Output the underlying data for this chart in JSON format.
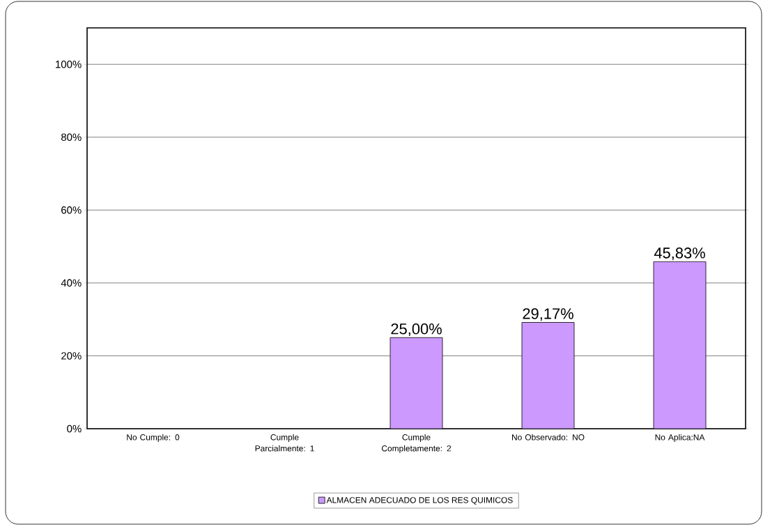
{
  "chart_data": {
    "type": "bar",
    "categories": [
      "No Cumple: 0",
      "Cumple Parcialmente: 1",
      "Cumple Completamente: 2",
      "No Observado: NO",
      "No Aplica:NA"
    ],
    "series": [
      {
        "name": "ALMACEN ADECUADO DE LOS RES QUIMICOS",
        "color": "#cc99ff",
        "values": [
          0,
          0,
          25.0,
          29.17,
          45.83
        ],
        "value_labels": [
          null,
          null,
          "25,00%",
          "29,17%",
          "45,83%"
        ]
      }
    ],
    "ylim": [
      0,
      110
    ],
    "yticks": [
      {
        "value": 0,
        "label": "0%"
      },
      {
        "value": 20,
        "label": "20%"
      },
      {
        "value": 40,
        "label": "40%"
      },
      {
        "value": 60,
        "label": "60%"
      },
      {
        "value": 80,
        "label": "80%"
      },
      {
        "value": 100,
        "label": "100%"
      }
    ],
    "grid": "y",
    "legend": "bottom"
  }
}
